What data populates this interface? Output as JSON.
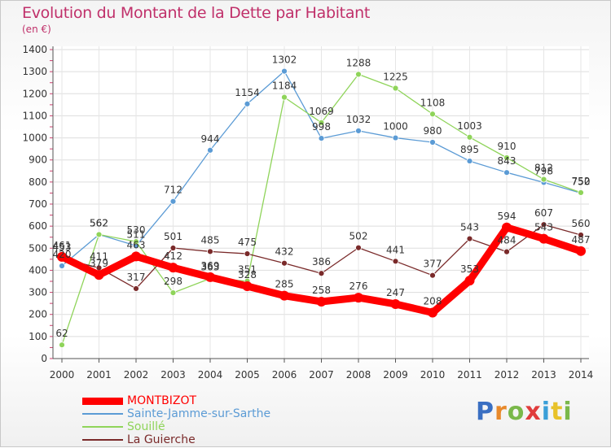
{
  "header": {
    "title": "Evolution du Montant de la Dette par Habitant",
    "subtitle": "(en €)"
  },
  "logo": {
    "text": "Proxiti",
    "colors": [
      "#3a6fc2",
      "#e8892a",
      "#7ab84a",
      "#e03c3c",
      "#3a9fd8",
      "#e8c22a",
      "#7ab84a"
    ]
  },
  "chart_data": {
    "type": "line",
    "title": "Evolution du Montant de la Dette par Habitant",
    "ylabel": "(en €)",
    "xlabel": "",
    "x": [
      "2000",
      "2001",
      "2002",
      "2003",
      "2004",
      "2005",
      "2006",
      "2007",
      "2008",
      "2009",
      "2010",
      "2011",
      "2012",
      "2013",
      "2014"
    ],
    "ylim": [
      0,
      1400
    ],
    "yticks": [
      0,
      100,
      200,
      300,
      400,
      500,
      600,
      700,
      800,
      900,
      1000,
      1100,
      1200,
      1300,
      1400
    ],
    "grid": true,
    "legend": "bottom-left",
    "series": [
      {
        "name": "MONTBIZOT",
        "color": "#ff0000",
        "values": [
          461,
          379,
          463,
          412,
          369,
          328,
          285,
          258,
          276,
          247,
          208,
          353,
          594,
          543,
          487
        ]
      },
      {
        "name": "Sainte-Jamme-sur-Sarthe",
        "color": "#5b9bd5",
        "values": [
          420,
          562,
          511,
          712,
          944,
          1154,
          1302,
          998,
          1032,
          1000,
          980,
          895,
          843,
          798,
          750
        ]
      },
      {
        "name": "Souillé",
        "color": "#8fd45a",
        "values": [
          62,
          562,
          530,
          298,
          363,
          351,
          1184,
          1069,
          1288,
          1225,
          1108,
          1003,
          910,
          812,
          752
        ]
      },
      {
        "name": "La Guierche",
        "color": "#7a2a2a",
        "values": [
          453,
          411,
          317,
          501,
          485,
          475,
          432,
          386,
          502,
          441,
          377,
          543,
          484,
          607,
          560
        ]
      }
    ]
  }
}
